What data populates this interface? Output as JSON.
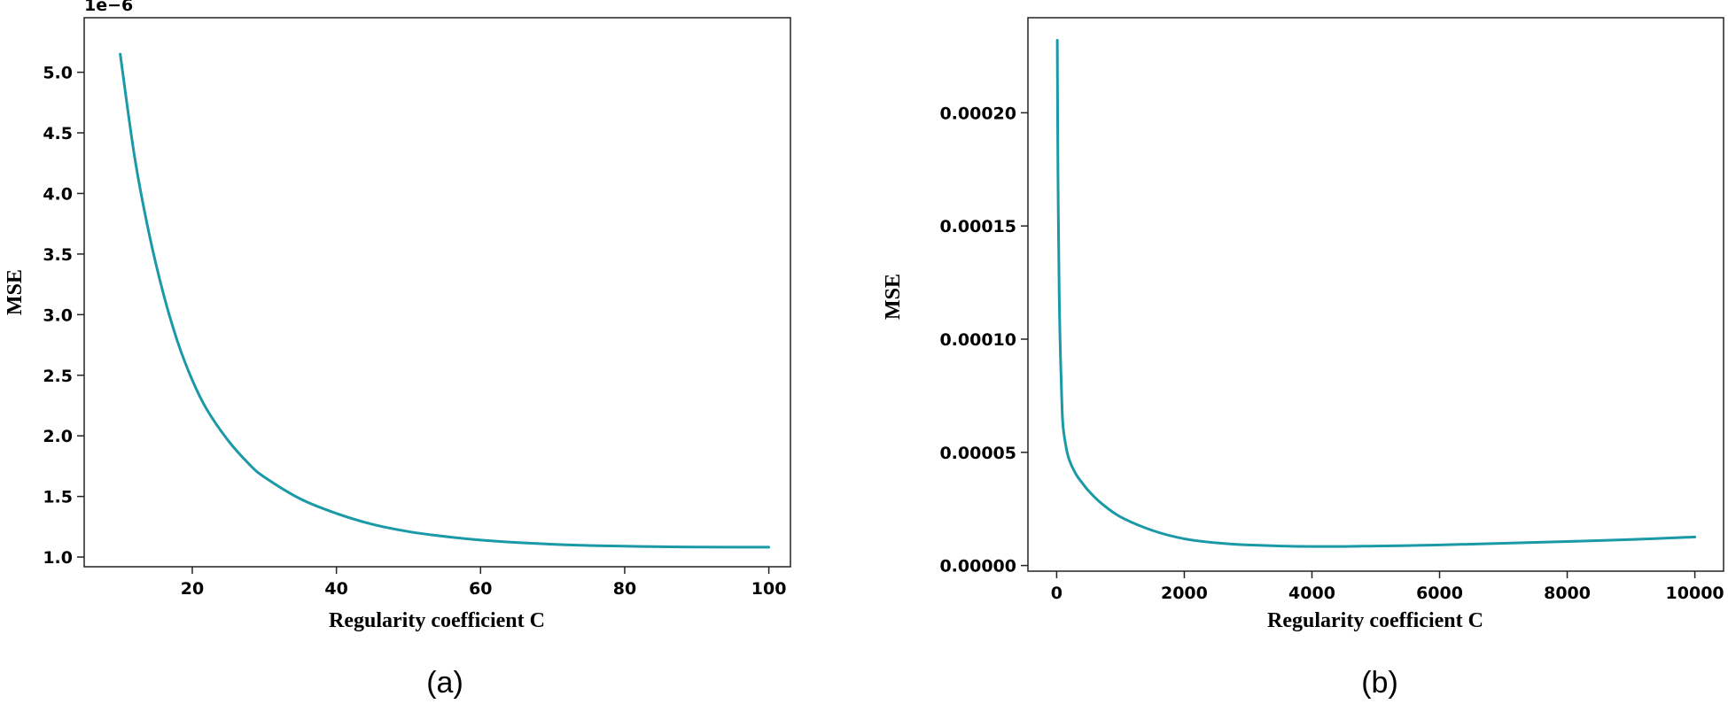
{
  "colors": {
    "line": "#1a99a6",
    "axes": "#222222"
  },
  "chart_data": [
    {
      "type": "line",
      "caption": "(a)",
      "xlabel": "Regularity coefficient C",
      "ylabel": "MSE",
      "y_offset_label": "1e−6",
      "xlim": [
        5,
        103
      ],
      "ylim": [
        0.92,
        5.45
      ],
      "xticks": [
        20,
        40,
        60,
        80,
        100
      ],
      "xtick_labels": [
        "20",
        "40",
        "60",
        "80",
        "100"
      ],
      "yticks": [
        1.0,
        1.5,
        2.0,
        2.5,
        3.0,
        3.5,
        4.0,
        4.5,
        5.0
      ],
      "ytick_labels": [
        "1.0",
        "1.5",
        "2.0",
        "2.5",
        "3.0",
        "3.5",
        "4.0",
        "4.5",
        "5.0"
      ],
      "grid": false,
      "series": [
        {
          "x": [
            10,
            12,
            14,
            16,
            18,
            20,
            22,
            25,
            28,
            30,
            35,
            40,
            45,
            50,
            55,
            60,
            65,
            70,
            75,
            80,
            85,
            90,
            95,
            100
          ],
          "y": [
            5.15,
            4.3,
            3.67,
            3.17,
            2.77,
            2.46,
            2.22,
            1.96,
            1.76,
            1.66,
            1.48,
            1.36,
            1.27,
            1.21,
            1.17,
            1.14,
            1.12,
            1.105,
            1.095,
            1.09,
            1.085,
            1.083,
            1.082,
            1.082
          ]
        }
      ]
    },
    {
      "type": "line",
      "caption": "(b)",
      "xlabel": "Regularity coefficient C",
      "ylabel": "MSE",
      "xlim": [
        -450,
        10450
      ],
      "ylim": [
        -2.5e-06,
        0.000242
      ],
      "xticks": [
        0,
        2000,
        4000,
        6000,
        8000,
        10000
      ],
      "xtick_labels": [
        "0",
        "2000",
        "4000",
        "6000",
        "8000",
        "10000"
      ],
      "yticks": [
        0.0,
        5e-05,
        0.0001,
        0.00015,
        0.0002
      ],
      "ytick_labels": [
        "0.00000",
        "0.00005",
        "0.00010",
        "0.00015",
        "0.00020"
      ],
      "grid": false,
      "series": [
        {
          "x": [
            10,
            20,
            40,
            60,
            80,
            100,
            150,
            200,
            300,
            400,
            500,
            700,
            1000,
            1500,
            2000,
            2500,
            3000,
            4000,
            5000,
            6000,
            7000,
            8000,
            9000,
            10000
          ],
          "y": [
            0.000232,
            0.000175,
            0.00012,
            9.23e-05,
            7.35e-05,
            6.15e-05,
            5.2e-05,
            4.65e-05,
            4.05e-05,
            3.65e-05,
            3.3e-05,
            2.75e-05,
            2.15e-05,
            1.55e-05,
            1.18e-05,
            1e-05,
            9.1e-06,
            8.4e-06,
            8.6e-06,
            9.1e-06,
            9.8e-06,
            1.06e-05,
            1.15e-05,
            1.26e-05
          ]
        }
      ]
    }
  ]
}
